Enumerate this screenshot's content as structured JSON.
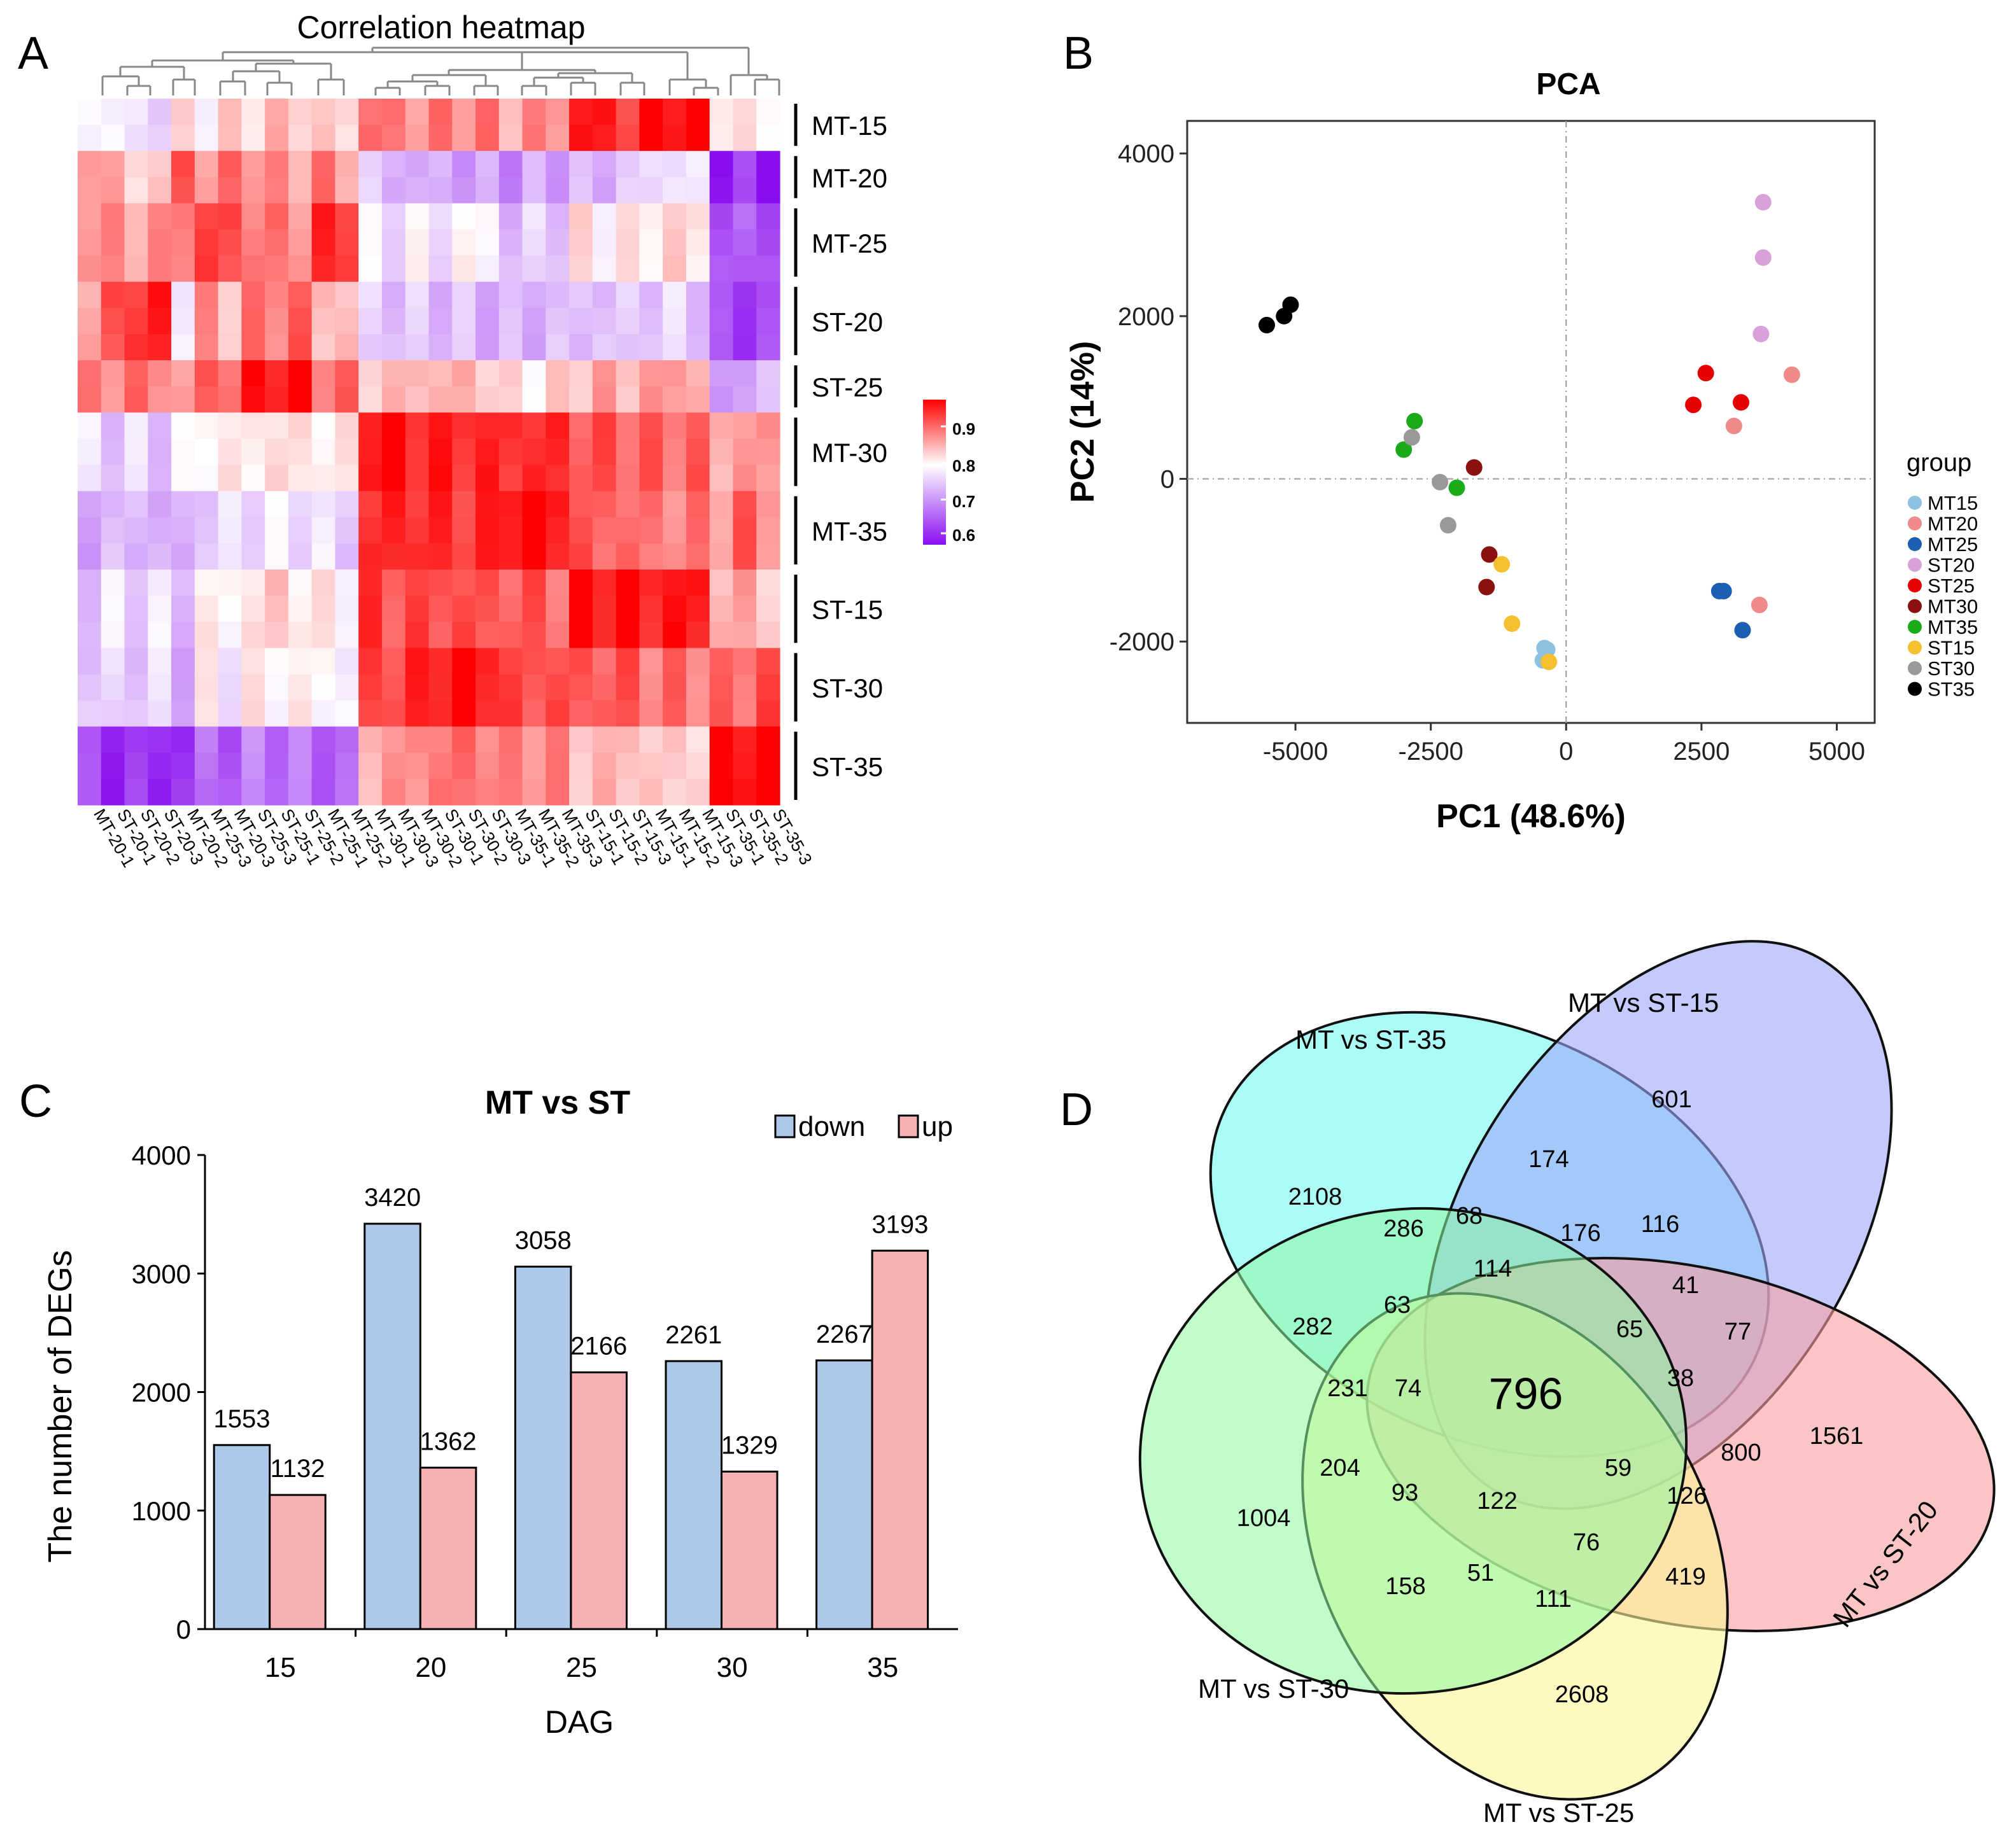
{
  "panels": {
    "a": "A",
    "b": "B",
    "c": "C",
    "d": "D"
  },
  "chart_data": [
    {
      "type": "heatmap",
      "title": "Correlation heatmap",
      "columns": [
        "MT-20-1",
        "ST-20-1",
        "ST-20-2",
        "ST-20-3",
        "MT-20-2",
        "MT-25-3",
        "MT-20-3",
        "ST-25-3",
        "ST-25-1",
        "ST-25-2",
        "MT-25-1",
        "MT-25-2",
        "MT-30-1",
        "MT-30-3",
        "MT-30-2",
        "ST-30-1",
        "ST-30-2",
        "ST-30-3",
        "MT-35-1",
        "MT-35-2",
        "MT-35-3",
        "ST-15-1",
        "ST-15-2",
        "ST-15-3",
        "MT-15-1",
        "MT-15-2",
        "MT-15-3",
        "ST-35-1",
        "ST-35-2",
        "ST-35-3"
      ],
      "row_groups": [
        "MT-15",
        "MT-20",
        "MT-25",
        "ST-20",
        "ST-25",
        "MT-30",
        "MT-35",
        "ST-15",
        "ST-30",
        "ST-35"
      ],
      "row_group_sizes": [
        2,
        2,
        3,
        3,
        2,
        3,
        3,
        3,
        3,
        3
      ],
      "row_group_profiles": [
        [
          0.78,
          0.77,
          0.75,
          0.75,
          0.8,
          0.79,
          0.81,
          0.82,
          0.83,
          0.83,
          0.82,
          0.81,
          0.9,
          0.88,
          0.87,
          0.88,
          0.88,
          0.88,
          0.85,
          0.87,
          0.87,
          0.96,
          0.96,
          0.93,
          0.98,
          0.98,
          0.98,
          0.82,
          0.79,
          0.8
        ],
        [
          0.88,
          0.84,
          0.82,
          0.82,
          0.92,
          0.86,
          0.89,
          0.88,
          0.86,
          0.86,
          0.88,
          0.86,
          0.73,
          0.72,
          0.71,
          0.71,
          0.7,
          0.7,
          0.69,
          0.7,
          0.71,
          0.71,
          0.72,
          0.73,
          0.75,
          0.76,
          0.75,
          0.6,
          0.61,
          0.6
        ],
        [
          0.88,
          0.86,
          0.86,
          0.86,
          0.9,
          0.92,
          0.93,
          0.88,
          0.89,
          0.87,
          0.94,
          0.95,
          0.76,
          0.76,
          0.77,
          0.76,
          0.78,
          0.78,
          0.72,
          0.74,
          0.74,
          0.8,
          0.79,
          0.79,
          0.81,
          0.81,
          0.81,
          0.63,
          0.65,
          0.64
        ],
        [
          0.84,
          0.92,
          0.94,
          0.95,
          0.78,
          0.86,
          0.84,
          0.88,
          0.89,
          0.9,
          0.84,
          0.83,
          0.74,
          0.73,
          0.73,
          0.73,
          0.72,
          0.72,
          0.71,
          0.72,
          0.72,
          0.73,
          0.73,
          0.73,
          0.74,
          0.74,
          0.74,
          0.62,
          0.63,
          0.62
        ],
        [
          0.87,
          0.88,
          0.89,
          0.88,
          0.85,
          0.91,
          0.9,
          0.96,
          0.97,
          0.97,
          0.9,
          0.89,
          0.83,
          0.83,
          0.84,
          0.84,
          0.84,
          0.83,
          0.8,
          0.8,
          0.81,
          0.84,
          0.85,
          0.84,
          0.86,
          0.86,
          0.85,
          0.68,
          0.72,
          0.71
        ],
        [
          0.75,
          0.74,
          0.74,
          0.74,
          0.76,
          0.8,
          0.79,
          0.8,
          0.81,
          0.8,
          0.8,
          0.79,
          0.98,
          0.97,
          0.96,
          0.95,
          0.95,
          0.95,
          0.94,
          0.95,
          0.94,
          0.92,
          0.91,
          0.91,
          0.9,
          0.9,
          0.9,
          0.85,
          0.86,
          0.86
        ],
        [
          0.71,
          0.72,
          0.72,
          0.72,
          0.7,
          0.75,
          0.74,
          0.76,
          0.76,
          0.76,
          0.75,
          0.74,
          0.94,
          0.95,
          0.95,
          0.94,
          0.94,
          0.94,
          0.98,
          0.98,
          0.97,
          0.91,
          0.9,
          0.9,
          0.88,
          0.88,
          0.88,
          0.87,
          0.9,
          0.88
        ],
        [
          0.74,
          0.75,
          0.75,
          0.75,
          0.73,
          0.79,
          0.78,
          0.81,
          0.82,
          0.81,
          0.79,
          0.79,
          0.93,
          0.92,
          0.92,
          0.92,
          0.92,
          0.91,
          0.91,
          0.91,
          0.9,
          0.97,
          0.97,
          0.97,
          0.96,
          0.96,
          0.96,
          0.84,
          0.85,
          0.83
        ],
        [
          0.73,
          0.74,
          0.74,
          0.74,
          0.72,
          0.78,
          0.77,
          0.79,
          0.79,
          0.79,
          0.78,
          0.77,
          0.92,
          0.93,
          0.94,
          0.97,
          0.97,
          0.97,
          0.92,
          0.92,
          0.92,
          0.91,
          0.91,
          0.91,
          0.89,
          0.89,
          0.89,
          0.89,
          0.9,
          0.92
        ],
        [
          0.62,
          0.61,
          0.61,
          0.61,
          0.61,
          0.66,
          0.65,
          0.67,
          0.67,
          0.66,
          0.66,
          0.64,
          0.85,
          0.86,
          0.87,
          0.89,
          0.89,
          0.89,
          0.87,
          0.88,
          0.87,
          0.84,
          0.83,
          0.84,
          0.82,
          0.82,
          0.82,
          0.98,
          0.98,
          0.98
        ]
      ],
      "legend": {
        "ticks": [
          "0.9",
          "0.8",
          "0.7",
          "0.6"
        ],
        "range": [
          0.58,
          0.98
        ],
        "colors": [
          "#8a0df0",
          "#ffffff",
          "#ff0000"
        ]
      }
    },
    {
      "type": "scatter",
      "title": "PCA",
      "xlabel": "PC1 (48.6%)",
      "ylabel": "PC2 (14%)",
      "xlim": [
        -7000,
        5700
      ],
      "ylim": [
        -3000,
        4400
      ],
      "xticks": [
        -5000,
        -2500,
        0,
        2500,
        5000
      ],
      "xtick_labels": [
        "-5000",
        "-2500",
        "0",
        "2500",
        "5000"
      ],
      "yticks": [
        -2000,
        0,
        2000,
        4000
      ],
      "ytick_labels": [
        "-2000",
        "0",
        "2000",
        "4000"
      ],
      "legend_title": "group",
      "series": [
        {
          "name": "MT15",
          "color": "#8ec1e0",
          "points": [
            [
              -400,
              -2080
            ],
            [
              -350,
              -2100
            ],
            [
              -430,
              -2230
            ]
          ]
        },
        {
          "name": "MT20",
          "color": "#f08a8a",
          "points": [
            [
              4170,
              1280
            ],
            [
              3100,
              650
            ],
            [
              3570,
              -1550
            ]
          ]
        },
        {
          "name": "MT25",
          "color": "#1a5fb4",
          "points": [
            [
              2830,
              -1380
            ],
            [
              2910,
              -1380
            ],
            [
              3260,
              -1860
            ]
          ]
        },
        {
          "name": "ST20",
          "color": "#d9a0d9",
          "points": [
            [
              3640,
              3400
            ],
            [
              3640,
              2720
            ],
            [
              3600,
              1780
            ]
          ]
        },
        {
          "name": "ST25",
          "color": "#e60000",
          "points": [
            [
              2580,
              1300
            ],
            [
              2350,
              910
            ],
            [
              3230,
              940
            ]
          ]
        },
        {
          "name": "MT30",
          "color": "#8b1010",
          "points": [
            [
              -1700,
              140
            ],
            [
              -1420,
              -930
            ],
            [
              -1470,
              -1330
            ]
          ]
        },
        {
          "name": "MT35",
          "color": "#1aaa1a",
          "points": [
            [
              -2800,
              710
            ],
            [
              -3000,
              360
            ],
            [
              -2020,
              -110
            ]
          ]
        },
        {
          "name": "ST15",
          "color": "#f5c030",
          "points": [
            [
              -1190,
              -1050
            ],
            [
              -1000,
              -1780
            ],
            [
              -320,
              -2250
            ]
          ]
        },
        {
          "name": "ST30",
          "color": "#999999",
          "points": [
            [
              -2850,
              510
            ],
            [
              -2330,
              -40
            ],
            [
              -2180,
              -570
            ]
          ]
        },
        {
          "name": "ST35",
          "color": "#000000",
          "points": [
            [
              -5530,
              1890
            ],
            [
              -5210,
              2000
            ],
            [
              -5090,
              2140
            ]
          ]
        }
      ]
    },
    {
      "type": "bar",
      "title": "MT vs ST",
      "xlabel": "DAG",
      "ylabel": "The number of DEGs",
      "categories": [
        "15",
        "20",
        "25",
        "30",
        "35"
      ],
      "ylim": [
        0,
        4000
      ],
      "yticks": [
        "0",
        "1000",
        "2000",
        "3000",
        "4000"
      ],
      "series": [
        {
          "name": "down",
          "color": "#adc8e8",
          "values": [
            1553,
            3420,
            3058,
            2261,
            2267
          ],
          "labels": [
            "1553",
            "3420",
            "3058",
            "2261",
            "2267"
          ]
        },
        {
          "name": "up",
          "color": "#f7b1b5",
          "values": [
            1132,
            1362,
            2166,
            1329,
            3193
          ],
          "labels": [
            "1132",
            "1362",
            "2166",
            "1329",
            "3193"
          ]
        }
      ]
    },
    {
      "type": "venn",
      "sets": [
        {
          "name": "MT vs ST-15",
          "label": "MT vs ST-15",
          "color": "#9ea6fb"
        },
        {
          "name": "MT vs ST-20",
          "label": "MT vs ST-20",
          "color": "#f99ea0"
        },
        {
          "name": "MT vs ST-25",
          "label": "MT vs ST-25",
          "color": "#fcf698"
        },
        {
          "name": "MT vs ST-30",
          "label": "MT vs ST-30",
          "color": "#8ef9a0"
        },
        {
          "name": "MT vs ST-35",
          "label": "MT vs ST-35",
          "color": "#87f9f4"
        }
      ],
      "regions": [
        {
          "value": "601"
        },
        {
          "value": "1561"
        },
        {
          "value": "2608"
        },
        {
          "value": "1004"
        },
        {
          "value": "2108"
        },
        {
          "value": "174"
        },
        {
          "value": "116"
        },
        {
          "value": "77"
        },
        {
          "value": "41"
        },
        {
          "value": "176"
        },
        {
          "value": "68"
        },
        {
          "value": "286"
        },
        {
          "value": "114"
        },
        {
          "value": "65"
        },
        {
          "value": "38"
        },
        {
          "value": "800"
        },
        {
          "value": "282"
        },
        {
          "value": "63"
        },
        {
          "value": "231"
        },
        {
          "value": "74"
        },
        {
          "value": "796"
        },
        {
          "value": "59"
        },
        {
          "value": "126"
        },
        {
          "value": "204"
        },
        {
          "value": "93"
        },
        {
          "value": "122"
        },
        {
          "value": "76"
        },
        {
          "value": "419"
        },
        {
          "value": "158"
        },
        {
          "value": "51"
        },
        {
          "value": "111"
        }
      ]
    }
  ]
}
